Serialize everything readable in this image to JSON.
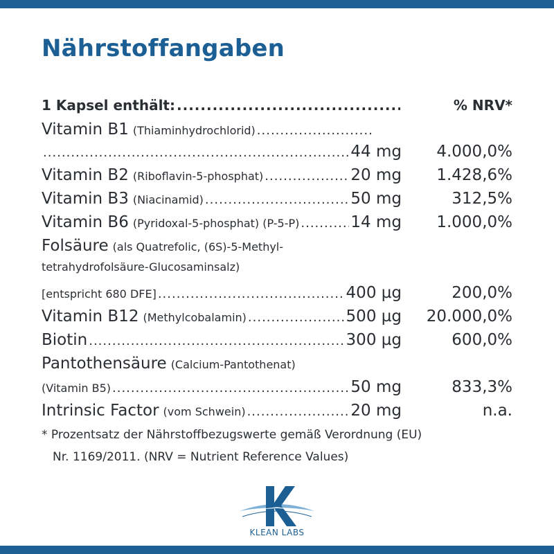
{
  "title": "Nährstoffangaben",
  "header": {
    "left": "1 Kapsel enthält:",
    "right": "% NRV*"
  },
  "rows": {
    "b1_name": "Vitamin B1",
    "b1_detail": "(Thiaminhydrochlorid)",
    "b1_amount": "44 mg",
    "b1_pct": "4.000,0%",
    "b2_name": "Vitamin B2",
    "b2_detail": "(Riboflavin-5-phosphat)",
    "b2_amount": "20 mg",
    "b2_pct": "1.428,6%",
    "b3_name": "Vitamin B3",
    "b3_detail": "(Niacinamid)",
    "b3_amount": "50 mg",
    "b3_pct": "312,5%",
    "b6_name": "Vitamin B6",
    "b6_detail": "(Pyridoxal-5-phosphat) (P-5-P)",
    "b6_amount": "14 mg",
    "b6_pct": "1.000,0%",
    "fol_name": "Folsäure",
    "fol_detail1": "(als Quatrefolic, (6S)-5-Methyl-",
    "fol_detail2": "tetrahydrofolsäure-Glucosaminsalz)",
    "fol_detail3": "[entspricht 680 DFE]",
    "fol_amount": "400 µg",
    "fol_pct": "200,0%",
    "b12_name": "Vitamin B12",
    "b12_detail": "(Methylcobalamin)",
    "b12_amount": "500 µg",
    "b12_pct": "20.000,0%",
    "biotin_name": "Biotin",
    "biotin_amount": "300 µg",
    "biotin_pct": "600,0%",
    "panto_name": "Pantothensäure",
    "panto_detail1": "(Calcium-Pantothenat)",
    "panto_detail2": "(Vitamin B5)",
    "panto_amount": "50 mg",
    "panto_pct": "833,3%",
    "if_name": "Intrinsic Factor",
    "if_detail": "(vom Schwein)",
    "if_amount": "20 mg",
    "if_pct": "n.a."
  },
  "footnote": {
    "line1": "* Prozentsatz der Nährstoffbezugswerte gemäß Verordnung (EU)",
    "line2": "Nr. 1169/2011. (NRV = Nutrient Reference Values)"
  },
  "logo": {
    "text": "KLEAN LABS"
  },
  "colors": {
    "brand": "#1b5f95",
    "text": "#2a2e33"
  }
}
